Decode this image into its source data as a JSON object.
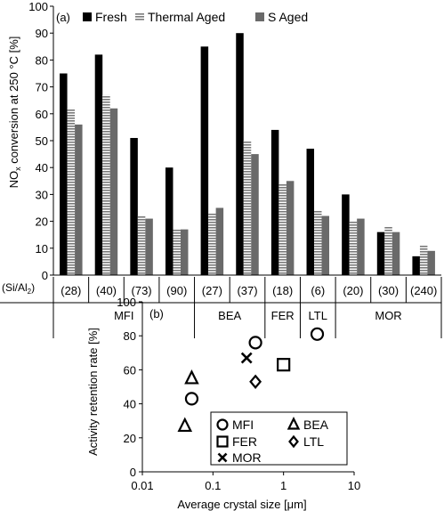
{
  "chart_data": [
    {
      "panel_label": "(a)",
      "type": "bar",
      "ylabel": "NOx conversion at 250 °C  [%]",
      "ylabel_parts": {
        "pre": "NO",
        "sub": "x",
        "post": " conversion at 250 °C  [%]"
      },
      "ylim": [
        0,
        100
      ],
      "yticks": [
        0,
        10,
        20,
        30,
        40,
        50,
        60,
        70,
        80,
        90,
        100
      ],
      "grid": false,
      "legend_position": "top-left",
      "ratio_header": "(Si/Al2)",
      "ratio_header_parts": {
        "pre": "(Si/Al",
        "sub": "2",
        "post": ")"
      },
      "categories": [
        "(28)",
        "(40)",
        "(73)",
        "(90)",
        "(27)",
        "(37)",
        "(18)",
        "(6)",
        "(20)",
        "(30)",
        "(240)"
      ],
      "groups": [
        {
          "name": "MFI",
          "count": 4
        },
        {
          "name": "BEA",
          "count": 2
        },
        {
          "name": "FER",
          "count": 1
        },
        {
          "name": "LTL",
          "count": 1
        },
        {
          "name": "MOR",
          "count": 3
        }
      ],
      "series": [
        {
          "name": "Fresh",
          "style": "solid",
          "color": "#000000",
          "values": [
            75,
            82,
            51,
            40,
            85,
            90,
            54,
            47,
            30,
            16,
            7
          ]
        },
        {
          "name": "Thermal Aged",
          "style": "hatch",
          "color": "#8a8a8a",
          "values": [
            62,
            67,
            22,
            17,
            23,
            50,
            34,
            24,
            20,
            18,
            11
          ]
        },
        {
          "name": "S Aged",
          "style": "solid",
          "color": "#6a6a6a",
          "values": [
            56,
            62,
            21,
            17,
            25,
            45,
            35,
            22,
            21,
            16,
            9
          ]
        }
      ]
    },
    {
      "panel_label": "(b)",
      "type": "scatter",
      "xlabel": "Average crystal size [μm]",
      "ylabel": "Activity retention rate  [%]",
      "xscale": "log",
      "xlim": [
        0.01,
        10
      ],
      "xticks": [
        "0.01",
        "0.1",
        "1",
        "10"
      ],
      "ylim": [
        0,
        100
      ],
      "yticks": [
        0,
        20,
        40,
        60,
        80,
        100
      ],
      "grid": false,
      "legend_position": "bottom-right",
      "series": [
        {
          "name": "MFI",
          "marker": "circle",
          "points": [
            [
              0.05,
              43
            ],
            [
              0.4,
              76
            ],
            [
              3.0,
              81
            ]
          ]
        },
        {
          "name": "BEA",
          "marker": "triangle",
          "points": [
            [
              0.04,
              27
            ],
            [
              0.05,
              55
            ]
          ]
        },
        {
          "name": "FER",
          "marker": "square",
          "points": [
            [
              1.0,
              63
            ]
          ]
        },
        {
          "name": "LTL",
          "marker": "diamond",
          "points": [
            [
              0.4,
              53
            ]
          ]
        },
        {
          "name": "MOR",
          "marker": "cross",
          "points": [
            [
              0.3,
              67
            ]
          ]
        }
      ]
    }
  ]
}
